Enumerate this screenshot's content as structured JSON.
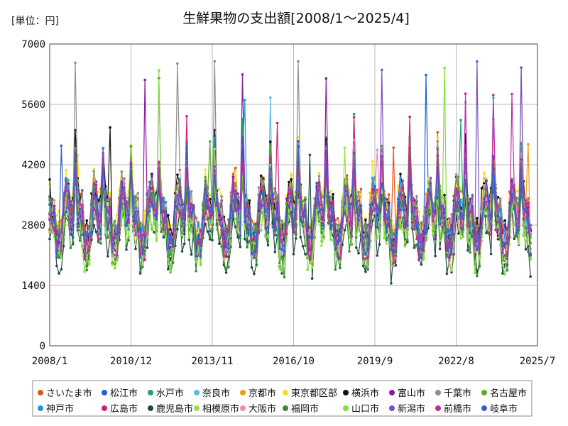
{
  "chart_data": {
    "type": "line",
    "title": "生鮮果物の支出額[2008/1～2025/4]",
    "unit_label": "[単位：円]",
    "xlabel": "",
    "ylabel": "",
    "ylim": [
      0,
      7000
    ],
    "y_ticks": [
      "0",
      "1400",
      "2800",
      "4200",
      "5600",
      "7000"
    ],
    "x_range": [
      "2008/1",
      "2025/7"
    ],
    "x_ticks": [
      "2008/1",
      "2010/12",
      "2013/11",
      "2016/10",
      "2019/9",
      "2022/8",
      "2025/7"
    ],
    "grid": true,
    "legend_position": "bottom",
    "series": [
      {
        "name": "さいたま市",
        "color": "#e8531d",
        "base": 3100,
        "peak": 4700
      },
      {
        "name": "松江市",
        "color": "#1f5fdb",
        "base": 2900,
        "peak": 6350
      },
      {
        "name": "水戸市",
        "color": "#1aa37a",
        "base": 3000,
        "peak": 5500
      },
      {
        "name": "奈良市",
        "color": "#5cb8e6",
        "base": 2950,
        "peak": 5800
      },
      {
        "name": "京都市",
        "color": "#ee9a18",
        "base": 3050,
        "peak": 4800
      },
      {
        "name": "東京都区部",
        "color": "#f2e21a",
        "base": 3250,
        "peak": 4700
      },
      {
        "name": "横浜市",
        "color": "#111111",
        "base": 3150,
        "peak": 5200
      },
      {
        "name": "富山市",
        "color": "#8a1a9e",
        "base": 3000,
        "peak": 6400
      },
      {
        "name": "千葉市",
        "color": "#8c8c8c",
        "base": 3200,
        "peak": 6600
      },
      {
        "name": "名古屋市",
        "color": "#5aa82a",
        "base": 3000,
        "peak": 5000
      },
      {
        "name": "神戸市",
        "color": "#1c9ad6",
        "base": 2950,
        "peak": 5800
      },
      {
        "name": "広島市",
        "color": "#d11f7a",
        "base": 2850,
        "peak": 5400
      },
      {
        "name": "鹿児島市",
        "color": "#1e4a40",
        "base": 2400,
        "peak": 4500
      },
      {
        "name": "相模原市",
        "color": "#9ce04a",
        "base": 2700,
        "peak": 4600
      },
      {
        "name": "大阪市",
        "color": "#f08ab8",
        "base": 2850,
        "peak": 4600
      },
      {
        "name": "福岡市",
        "color": "#3a8a3a",
        "base": 2600,
        "peak": 4800
      },
      {
        "name": "山口市",
        "color": "#7fe03c",
        "base": 2650,
        "peak": 6500
      },
      {
        "name": "新潟市",
        "color": "#7a4fc4",
        "base": 3000,
        "peak": 6600
      },
      {
        "name": "前橋市",
        "color": "#c02aa8",
        "base": 2900,
        "peak": 6050
      },
      {
        "name": "岐阜市",
        "color": "#3a5ec8",
        "base": 2900,
        "peak": 4900
      }
    ]
  }
}
